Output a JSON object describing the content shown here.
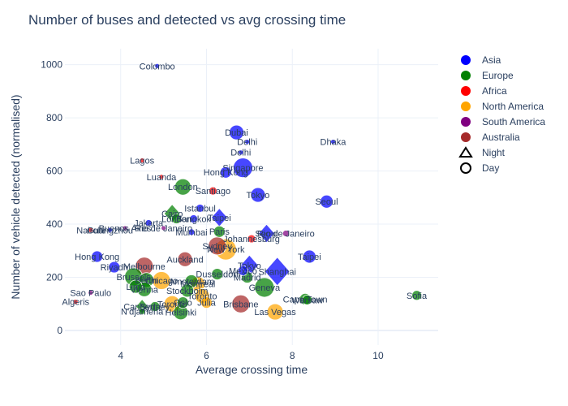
{
  "chart_data": {
    "type": "scatter",
    "title": "Number of buses and detected vs avg crossing time",
    "xlabel": "Average crossing time",
    "ylabel": "Number of vehicle detected (normalised)",
    "xlim": [
      2.7,
      11.4
    ],
    "ylim": [
      -55,
      1060
    ],
    "x_ticks": [
      4,
      6,
      8,
      10
    ],
    "y_ticks": [
      0,
      200,
      400,
      600,
      800,
      1000
    ],
    "grid": true,
    "legend_position": "top-right",
    "legend": {
      "continents": [
        {
          "name": "Asia",
          "color": "#0000ff"
        },
        {
          "name": "Europe",
          "color": "#008000"
        },
        {
          "name": "Africa",
          "color": "#ff0000"
        },
        {
          "name": "North America",
          "color": "#ffa500"
        },
        {
          "name": "South America",
          "color": "#800080"
        },
        {
          "name": "Australia",
          "color": "#a52a2a"
        }
      ],
      "symbols": [
        {
          "name": "Night",
          "symbol": "triangle"
        },
        {
          "name": "Day",
          "symbol": "circle"
        }
      ]
    },
    "points": [
      {
        "label": "Colombo",
        "x": 4.85,
        "y": 995,
        "c": "Asia",
        "s": "circle",
        "size": 3
      },
      {
        "label": "Dubai",
        "x": 6.7,
        "y": 745,
        "c": "Asia",
        "s": "circle",
        "size": 9
      },
      {
        "label": "Delhi",
        "x": 6.95,
        "y": 710,
        "c": "Asia",
        "s": "circle",
        "size": 3
      },
      {
        "label": "Dhaka",
        "x": 8.95,
        "y": 710,
        "c": "Asia",
        "s": "circle",
        "size": 3
      },
      {
        "label": "Delhi",
        "x": 6.8,
        "y": 670,
        "c": "Asia",
        "s": "circle",
        "size": 3
      },
      {
        "label": "Lagos",
        "x": 4.5,
        "y": 640,
        "c": "Africa",
        "s": "circle",
        "size": 3
      },
      {
        "label": "Singapore",
        "x": 6.85,
        "y": 612,
        "c": "Asia",
        "s": "circle",
        "size": 12
      },
      {
        "label": "Hong Kong",
        "x": 6.45,
        "y": 595,
        "c": "Asia",
        "s": "circle",
        "size": 7
      },
      {
        "label": "Luanda",
        "x": 4.95,
        "y": 578,
        "c": "Africa",
        "s": "circle",
        "size": 3
      },
      {
        "label": "London",
        "x": 5.45,
        "y": 540,
        "c": "Europe",
        "s": "circle",
        "size": 10
      },
      {
        "label": "Santiago",
        "x": 6.15,
        "y": 525,
        "c": "Africa",
        "s": "circle",
        "size": 5
      },
      {
        "label": "Tokyo",
        "x": 7.2,
        "y": 510,
        "c": "Asia",
        "s": "circle",
        "size": 9
      },
      {
        "label": "Seoul",
        "x": 8.8,
        "y": 485,
        "c": "Asia",
        "s": "circle",
        "size": 8
      },
      {
        "label": "Istanbul",
        "x": 5.85,
        "y": 460,
        "c": "Asia",
        "s": "circle",
        "size": 5
      },
      {
        "label": "Cairo",
        "x": 5.2,
        "y": 440,
        "c": "Europe",
        "s": "triangle",
        "size": 9
      },
      {
        "label": "Taipei",
        "x": 6.3,
        "y": 425,
        "c": "Asia",
        "s": "triangle",
        "size": 9
      },
      {
        "label": "Bangkok",
        "x": 5.7,
        "y": 420,
        "c": "Asia",
        "s": "circle",
        "size": 5
      },
      {
        "label": "London",
        "x": 5.3,
        "y": 420,
        "c": "Europe",
        "s": "circle",
        "size": 6
      },
      {
        "label": "Jakarta",
        "x": 4.65,
        "y": 405,
        "c": "Asia",
        "s": "circle",
        "size": 4
      },
      {
        "label": "Buenos Aires",
        "x": 4.1,
        "y": 385,
        "c": "South America",
        "s": "circle",
        "size": 3
      },
      {
        "label": "Rio de Janeiro",
        "x": 5.0,
        "y": 385,
        "c": "South America",
        "s": "circle",
        "size": 3
      },
      {
        "label": "Nairobi",
        "x": 3.3,
        "y": 378,
        "c": "Africa",
        "s": "circle",
        "size": 3
      },
      {
        "label": "Guangzhou",
        "x": 3.75,
        "y": 378,
        "c": "Asia",
        "s": "circle",
        "size": 3
      },
      {
        "label": "Mumbai",
        "x": 5.65,
        "y": 370,
        "c": "Asia",
        "s": "circle",
        "size": 4
      },
      {
        "label": "Paris",
        "x": 6.3,
        "y": 372,
        "c": "Europe",
        "s": "circle",
        "size": 7
      },
      {
        "label": "Seoul",
        "x": 7.4,
        "y": 365,
        "c": "Asia",
        "s": "triangle",
        "size": 9
      },
      {
        "label": "Rio de Janeiro",
        "x": 7.85,
        "y": 365,
        "c": "South America",
        "s": "circle",
        "size": 4
      },
      {
        "label": "Johannesburg",
        "x": 7.05,
        "y": 345,
        "c": "Africa",
        "s": "circle",
        "size": 5
      },
      {
        "label": "Sydney",
        "x": 6.25,
        "y": 318,
        "c": "Australia",
        "s": "circle",
        "size": 11
      },
      {
        "label": "New York",
        "x": 6.45,
        "y": 305,
        "c": "North America",
        "s": "circle",
        "size": 13
      },
      {
        "label": "Hong Kong",
        "x": 3.45,
        "y": 278,
        "c": "Asia",
        "s": "circle",
        "size": 7
      },
      {
        "label": "Taipei",
        "x": 8.4,
        "y": 278,
        "c": "Asia",
        "s": "circle",
        "size": 8
      },
      {
        "label": "Auckland",
        "x": 5.5,
        "y": 268,
        "c": "Australia",
        "s": "circle",
        "size": 9
      },
      {
        "label": "Melbourne",
        "x": 4.55,
        "y": 242,
        "c": "Australia",
        "s": "circle",
        "size": 11
      },
      {
        "label": "Riyadh",
        "x": 3.85,
        "y": 238,
        "c": "Asia",
        "s": "circle",
        "size": 7
      },
      {
        "label": "Tokyo",
        "x": 7.0,
        "y": 245,
        "c": "Asia",
        "s": "triangle",
        "size": 10
      },
      {
        "label": "Mexico",
        "x": 6.85,
        "y": 225,
        "c": "Asia",
        "s": "circle",
        "size": 6
      },
      {
        "label": "Shanghai",
        "x": 7.65,
        "y": 222,
        "c": "Asia",
        "s": "triangle",
        "size": 14
      },
      {
        "label": "Dusseldorf",
        "x": 6.25,
        "y": 212,
        "c": "Europe",
        "s": "circle",
        "size": 7
      },
      {
        "label": "Madrid",
        "x": 6.95,
        "y": 200,
        "c": "Europe",
        "s": "circle",
        "size": 7
      },
      {
        "label": "Brussels",
        "x": 4.3,
        "y": 202,
        "c": "Europe",
        "s": "circle",
        "size": 11
      },
      {
        "label": "Berlin",
        "x": 4.6,
        "y": 190,
        "c": "Europe",
        "s": "circle",
        "size": 9
      },
      {
        "label": "Chicago",
        "x": 4.95,
        "y": 188,
        "c": "North America",
        "s": "circle",
        "size": 11
      },
      {
        "label": "Amsterdam",
        "x": 5.65,
        "y": 185,
        "c": "Europe",
        "s": "circle",
        "size": 8
      },
      {
        "label": "Montreal",
        "x": 5.8,
        "y": 175,
        "c": "North America",
        "s": "circle",
        "size": 9
      },
      {
        "label": "Geneva",
        "x": 7.35,
        "y": 162,
        "c": "Europe",
        "s": "circle",
        "size": 12
      },
      {
        "label": "Lima",
        "x": 4.35,
        "y": 165,
        "c": "Europe",
        "s": "circle",
        "size": 8
      },
      {
        "label": "Vienna",
        "x": 4.55,
        "y": 155,
        "c": "Europe",
        "s": "circle",
        "size": 9
      },
      {
        "label": "Stockholm",
        "x": 5.55,
        "y": 150,
        "c": "Europe",
        "s": "circle",
        "size": 8
      },
      {
        "label": "Toronto",
        "x": 5.9,
        "y": 130,
        "c": "North America",
        "s": "circle",
        "size": 9
      },
      {
        "label": "Sao Paulo",
        "x": 3.3,
        "y": 142,
        "c": "South America",
        "s": "circle",
        "size": 3
      },
      {
        "label": "Sofia",
        "x": 10.9,
        "y": 132,
        "c": "Europe",
        "s": "circle",
        "size": 6
      },
      {
        "label": "Cape Town",
        "x": 8.3,
        "y": 118,
        "c": "Europe",
        "s": "circle",
        "size": 7
      },
      {
        "label": "Warsaw",
        "x": 8.35,
        "y": 115,
        "c": "Europe",
        "s": "circle",
        "size": 6
      },
      {
        "label": "Algeris",
        "x": 2.95,
        "y": 108,
        "c": "Africa",
        "s": "circle",
        "size": 3
      },
      {
        "label": "Oslo",
        "x": 5.45,
        "y": 105,
        "c": "Europe",
        "s": "circle",
        "size": 7
      },
      {
        "label": "Toronto",
        "x": 5.2,
        "y": 100,
        "c": "North America",
        "s": "circle",
        "size": 10
      },
      {
        "label": "Brisbane",
        "x": 6.8,
        "y": 100,
        "c": "Australia",
        "s": "circle",
        "size": 11
      },
      {
        "label": "Julia",
        "x": 6.0,
        "y": 105,
        "c": "North America",
        "s": "circle",
        "size": 7
      },
      {
        "label": "Canberra",
        "x": 4.5,
        "y": 90,
        "c": "Europe",
        "s": "triangle",
        "size": 7
      },
      {
        "label": "Sydney",
        "x": 4.8,
        "y": 90,
        "c": "Europe",
        "s": "circle",
        "size": 6
      },
      {
        "label": "N'djamena",
        "x": 4.5,
        "y": 72,
        "c": "Europe",
        "s": "circle",
        "size": 4
      },
      {
        "label": "Helsinki",
        "x": 5.4,
        "y": 68,
        "c": "Europe",
        "s": "circle",
        "size": 9
      },
      {
        "label": "Las Vegas",
        "x": 7.6,
        "y": 70,
        "c": "North America",
        "s": "circle",
        "size": 10
      }
    ]
  }
}
